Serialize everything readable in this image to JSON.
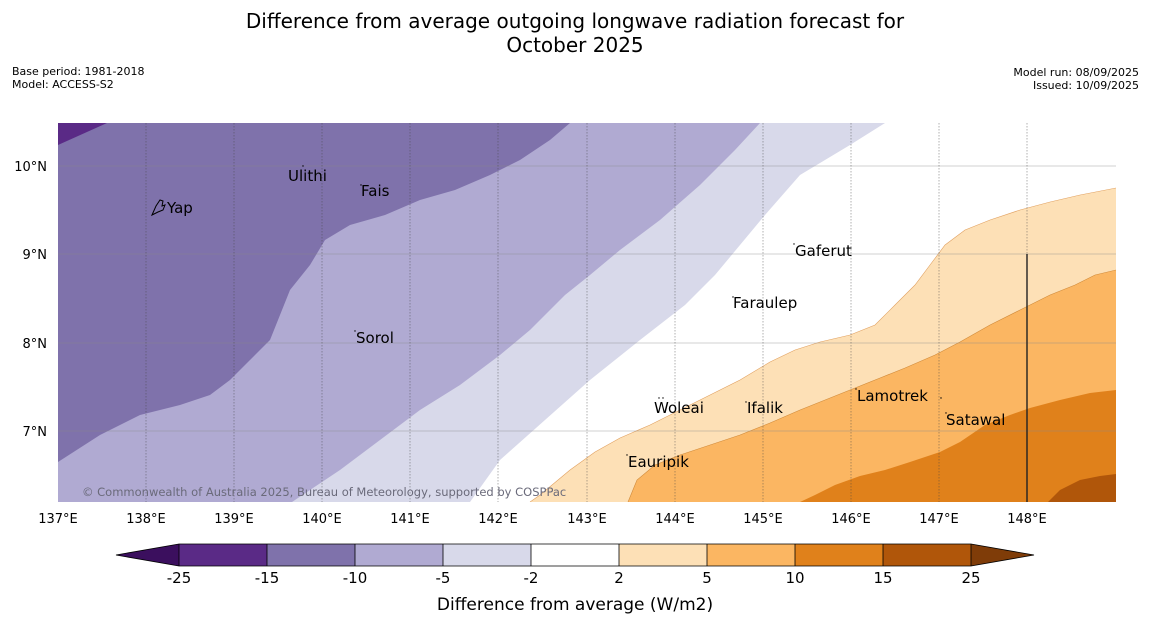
{
  "title": {
    "line1": "Difference from average outgoing longwave radiation forecast for",
    "line2": "October 2025"
  },
  "meta_left": {
    "base_period": "Base period: 1981-2018",
    "model": "Model: ACCESS-S2"
  },
  "meta_right": {
    "model_run": "Model run: 08/09/2025",
    "issued": "Issued: 10/09/2025"
  },
  "map": {
    "lat_ticks": [
      "10°N",
      "9°N",
      "8°N",
      "7°N"
    ],
    "lon_ticks": [
      "137°E",
      "138°E",
      "139°E",
      "140°E",
      "141°E",
      "142°E",
      "143°E",
      "144°E",
      "145°E",
      "146°E",
      "147°E",
      "148°E"
    ],
    "places": [
      {
        "name": "Yap",
        "lon": 138.3,
        "lat": 9.5
      },
      {
        "name": "Ulithi",
        "lon": 139.7,
        "lat": 9.95
      },
      {
        "name": "Fais",
        "lon": 140.5,
        "lat": 9.77
      },
      {
        "name": "Gaferut",
        "lon": 145.4,
        "lat": 9.1
      },
      {
        "name": "Faraulep",
        "lon": 144.7,
        "lat": 8.52
      },
      {
        "name": "Sorol",
        "lon": 140.4,
        "lat": 8.1
      },
      {
        "name": "Woleai",
        "lon": 143.9,
        "lat": 7.33
      },
      {
        "name": "Ifalik",
        "lon": 144.5,
        "lat": 7.33
      },
      {
        "name": "Lamotrek",
        "lon": 146.3,
        "lat": 7.45
      },
      {
        "name": "Satawal",
        "lon": 147.1,
        "lat": 7.2
      },
      {
        "name": "Eauripik",
        "lon": 143.1,
        "lat": 6.7
      }
    ],
    "copyright": "© Commonwealth of Australia 2025, Bureau of Meteorology, supported by COSPPac"
  },
  "colorbar": {
    "label": "Difference from average (W/m2)",
    "ticks": [
      "-25",
      "-15",
      "-10",
      "-5",
      "-2",
      "2",
      "5",
      "10",
      "15",
      "25"
    ],
    "colors": {
      "below_-25": "#3b0f5e",
      "-25_-15": "#5a2a86",
      "-15_-10": "#7f72ab",
      "-10_-5": "#b0aad2",
      "-5_-2": "#d8d9ea",
      "-2_2": "#ffffff",
      "2_5": "#fde0b6",
      "5_10": "#fbb662",
      "10_15": "#e0811b",
      "15_25": "#b0560a",
      "above_25": "#7f3c08"
    }
  }
}
